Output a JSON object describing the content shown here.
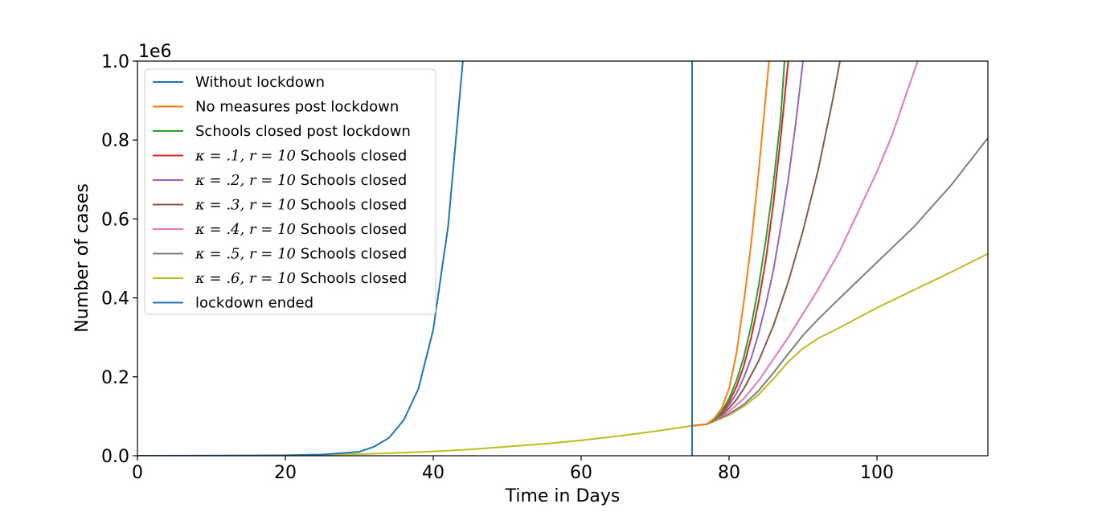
{
  "chart_data": {
    "type": "line",
    "xlabel": "Time in Days",
    "ylabel": "Number of cases",
    "y_offset_label": "1e6",
    "xlim": [
      0,
      115
    ],
    "ylim": [
      0,
      1000000
    ],
    "x_ticks": [
      0,
      20,
      40,
      60,
      80,
      100
    ],
    "x_tick_labels": [
      "0",
      "20",
      "40",
      "60",
      "80",
      "100"
    ],
    "y_ticks": [
      0,
      200000,
      400000,
      600000,
      800000,
      1000000
    ],
    "y_tick_labels": [
      "0.0",
      "0.2",
      "0.4",
      "0.6",
      "0.8",
      "1.0"
    ],
    "grid": false,
    "legend_position": "upper-left",
    "vline_x": 75,
    "series": [
      {
        "name": "Without lockdown",
        "color": "#1f77b4",
        "x": [
          0,
          10,
          20,
          25,
          30,
          32,
          34,
          36,
          38,
          40,
          42,
          43,
          44
        ],
        "y": [
          0,
          200,
          1000,
          3000,
          10000,
          23000,
          45000,
          90000,
          170000,
          320000,
          580000,
          790000,
          1000000
        ]
      },
      {
        "name": "No measures post lockdown",
        "color": "#ff7f0e",
        "x": [
          75,
          77,
          78,
          79,
          80,
          81,
          82,
          83,
          84,
          85,
          85.4
        ],
        "y": [
          76000,
          80000,
          95000,
          120000,
          170000,
          260000,
          390000,
          540000,
          720000,
          920000,
          1000000
        ]
      },
      {
        "name": "Schools closed post lockdown",
        "color": "#2ca02c",
        "x": [
          75,
          77,
          78,
          79,
          80,
          81,
          82,
          83,
          84,
          85,
          86,
          87,
          87.5
        ],
        "y": [
          76000,
          80000,
          92000,
          112000,
          145000,
          190000,
          250000,
          330000,
          430000,
          550000,
          690000,
          860000,
          1000000
        ]
      },
      {
        "name": "κ = .1, r = 10 Schools closed",
        "color": "#d62728",
        "x": [
          75,
          77,
          79,
          80,
          81,
          82,
          83,
          84,
          85,
          86,
          87,
          88
        ],
        "y": [
          76000,
          80000,
          108000,
          136000,
          175000,
          228000,
          300000,
          390000,
          500000,
          640000,
          810000,
          1000000
        ]
      },
      {
        "name": "κ = .2, r = 10 Schools closed",
        "color": "#9467bd",
        "x": [
          75,
          77,
          79,
          80,
          81,
          82,
          83,
          84,
          85,
          86,
          87,
          88,
          89,
          90
        ],
        "y": [
          76000,
          80000,
          105000,
          128000,
          158000,
          198000,
          248000,
          310000,
          385000,
          470000,
          580000,
          700000,
          840000,
          1000000
        ]
      },
      {
        "name": "κ = .3, r = 10 Schools closed",
        "color": "#8c564b",
        "x": [
          75,
          77,
          79,
          80,
          81,
          82,
          84,
          86,
          88,
          90,
          92,
          94,
          95
        ],
        "y": [
          76000,
          80000,
          103000,
          120000,
          142000,
          170000,
          240000,
          330000,
          440000,
          570000,
          720000,
          900000,
          1000000
        ]
      },
      {
        "name": "κ = .4, r = 10 Schools closed",
        "color": "#e377c2",
        "x": [
          75,
          77,
          79,
          80,
          82,
          84,
          86,
          88,
          90,
          92,
          95,
          98,
          100,
          102,
          105.5
        ],
        "y": [
          76000,
          80000,
          100000,
          112000,
          145000,
          190000,
          245000,
          300000,
          360000,
          420000,
          520000,
          640000,
          720000,
          810000,
          1000000
        ]
      },
      {
        "name": "κ = .5, r = 10 Schools closed",
        "color": "#7f7f7f",
        "x": [
          75,
          77,
          79,
          80,
          82,
          84,
          86,
          88,
          90,
          92,
          95,
          100,
          105,
          110,
          115
        ],
        "y": [
          76000,
          80000,
          97000,
          106000,
          130000,
          165000,
          210000,
          258000,
          305000,
          345000,
          400000,
          490000,
          580000,
          685000,
          805000
        ]
      },
      {
        "name": "κ = .6, r = 10 Schools closed",
        "color": "#bcbd22",
        "x": [
          75,
          77,
          79,
          80,
          82,
          84,
          86,
          88,
          90,
          92,
          95,
          100,
          105,
          110,
          115
        ],
        "y": [
          76000,
          80000,
          95000,
          103000,
          125000,
          155000,
          195000,
          238000,
          272000,
          297000,
          325000,
          375000,
          420000,
          465000,
          512000
        ]
      },
      {
        "name": "lockdown ended",
        "color": "#1f77b4",
        "vline": true
      }
    ],
    "common_prelockdown": {
      "color": "#bcbd22",
      "x": [
        0,
        10,
        20,
        30,
        35,
        40,
        45,
        50,
        55,
        60,
        65,
        70,
        75
      ],
      "y": [
        0,
        300,
        1200,
        4000,
        7000,
        11000,
        16000,
        23000,
        30000,
        39000,
        50000,
        62000,
        76000
      ]
    }
  }
}
